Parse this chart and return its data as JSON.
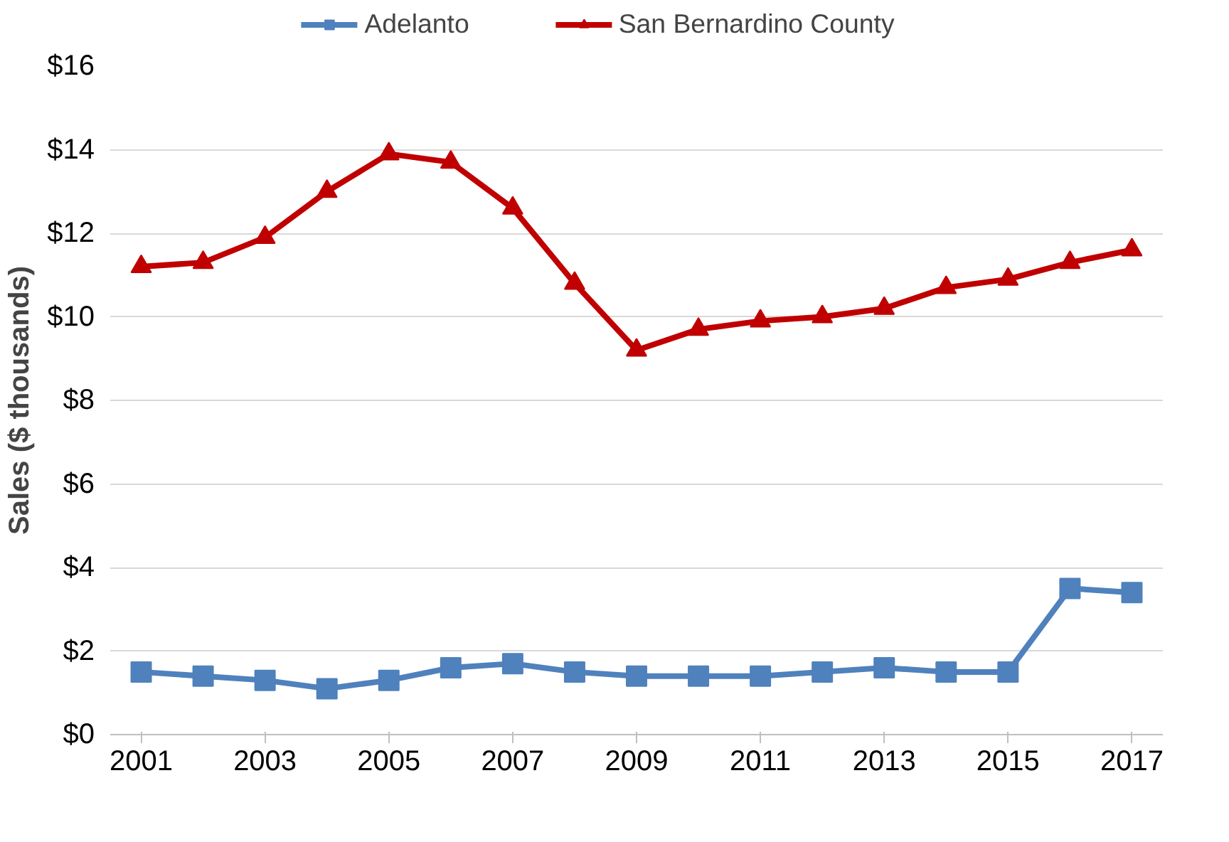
{
  "chart_data": {
    "type": "line",
    "ylabel": "Sales ($ thousands)",
    "x": [
      2001,
      2002,
      2003,
      2004,
      2005,
      2006,
      2007,
      2008,
      2009,
      2010,
      2011,
      2012,
      2013,
      2014,
      2015,
      2016,
      2017
    ],
    "series": [
      {
        "name": "Adelanto",
        "color": "#4f81bd",
        "marker": "square",
        "values": [
          1.5,
          1.4,
          1.3,
          1.1,
          1.3,
          1.6,
          1.7,
          1.5,
          1.4,
          1.4,
          1.4,
          1.5,
          1.6,
          1.5,
          1.5,
          3.5,
          3.4
        ]
      },
      {
        "name": "San Bernardino County",
        "color": "#c00000",
        "marker": "triangle",
        "values": [
          11.2,
          11.3,
          11.9,
          13.0,
          13.9,
          13.7,
          12.6,
          10.8,
          9.2,
          9.7,
          9.9,
          10.0,
          10.2,
          10.7,
          10.9,
          11.3,
          11.6
        ]
      }
    ],
    "xlim": [
      2000.5,
      2017.5
    ],
    "xticks": [
      2001,
      2003,
      2005,
      2007,
      2009,
      2011,
      2013,
      2015,
      2017
    ],
    "ylim": [
      0,
      16
    ],
    "yticks": [
      {
        "value": 0,
        "label": "$0"
      },
      {
        "value": 2,
        "label": "$2"
      },
      {
        "value": 4,
        "label": "$4"
      },
      {
        "value": 6,
        "label": "$6"
      },
      {
        "value": 8,
        "label": "$8"
      },
      {
        "value": 10,
        "label": "$10"
      },
      {
        "value": 12,
        "label": "$12"
      },
      {
        "value": 14,
        "label": "$14"
      },
      {
        "value": 16,
        "label": "$16"
      }
    ],
    "grid": "y",
    "legend": "top",
    "line_style": "solid"
  }
}
